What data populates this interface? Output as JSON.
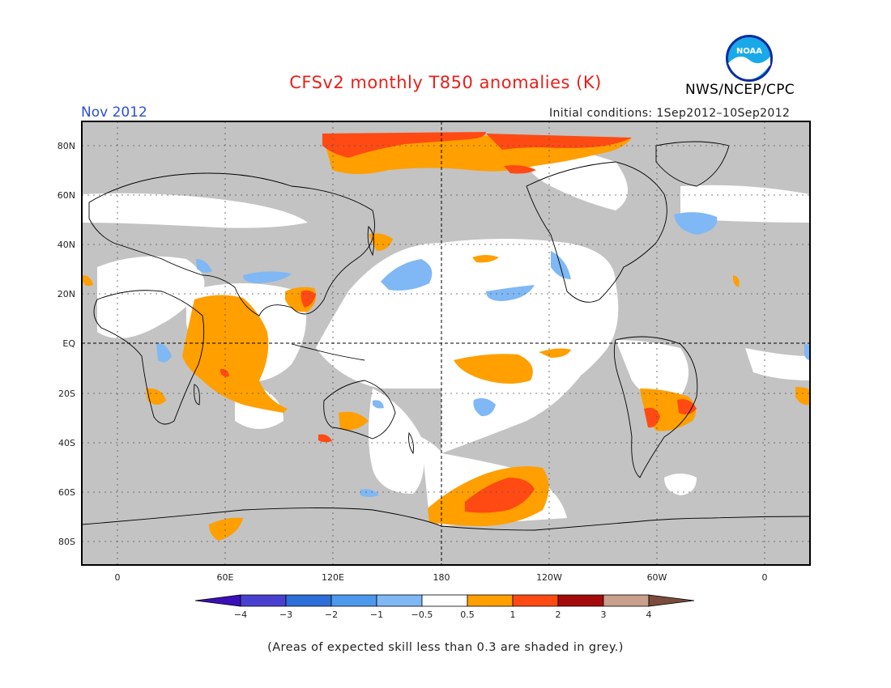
{
  "header": {
    "title": "CFSv2 monthly T850 anomalies (K)",
    "agency": "NWS/NCEP/CPC",
    "logo_text": "NOAA",
    "period": "Nov 2012",
    "initial_conditions": "Initial conditions: 1Sep2012–10Sep2012"
  },
  "axes": {
    "lat_labels": [
      "80N",
      "60N",
      "40N",
      "20N",
      "EQ",
      "20S",
      "40S",
      "60S",
      "80S"
    ],
    "lon_labels": [
      "0",
      "60E",
      "120E",
      "180",
      "120W",
      "60W",
      "0"
    ]
  },
  "colorbar": {
    "tick_labels": [
      "−4",
      "−3",
      "−2",
      "−1",
      "−0.5",
      "0.5",
      "1",
      "2",
      "3",
      "4"
    ],
    "colors": [
      "#3a0fb8",
      "#4a40d0",
      "#2d6fd8",
      "#4c98ec",
      "#7fb8f4",
      "#ffffff",
      "#ff9f00",
      "#ff4a13",
      "#a50a0a",
      "#c8a08c",
      "#7b4b3b"
    ]
  },
  "note": "(Areas of expected skill less than 0.3 are shaded in grey.)",
  "colors": {
    "title": "#e8201a",
    "period": "#2b4fd6",
    "grey_skill": "#c3c3c3",
    "orange": "#ff9f00",
    "red": "#ff4a13",
    "light_blue": "#7fb8f4"
  }
}
